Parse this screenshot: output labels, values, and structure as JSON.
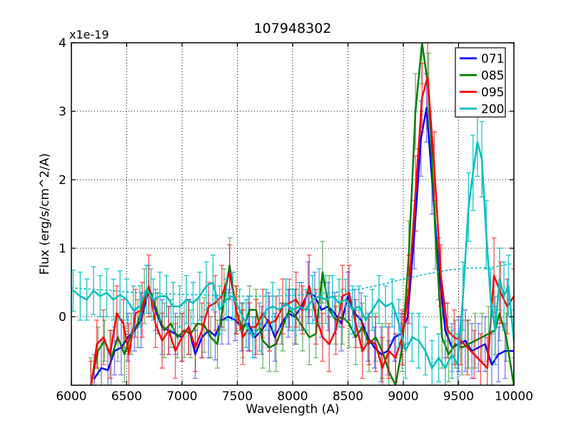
{
  "chart_data": {
    "type": "line",
    "title": "107948302",
    "xlabel": "Wavelength (A)",
    "ylabel": "Flux (erg/s/cm^2/A)",
    "offset_text": "x1e-19",
    "xlim": [
      6000,
      10000
    ],
    "ylim": [
      -1,
      4
    ],
    "xticks": [
      6000,
      6500,
      7000,
      7500,
      8000,
      8500,
      9000,
      9500,
      10000
    ],
    "yticks": [
      0,
      1,
      2,
      3,
      4
    ],
    "grid": true,
    "grid_style": "dotted",
    "legend_position": "upper right",
    "legend_labels": [
      "071",
      "085",
      "095",
      "200"
    ],
    "series": [
      {
        "name": "071",
        "color": "#0000ff",
        "style": "solid",
        "legend": true,
        "err_opacity": 0.5,
        "x": [
          6208,
          6270,
          6330,
          6390,
          6450,
          6510,
          6570,
          6630,
          6700,
          6760,
          6820,
          6880,
          6940,
          7000,
          7060,
          7120,
          7180,
          7240,
          7300,
          7360,
          7420,
          7480,
          7540,
          7600,
          7660,
          7720,
          7780,
          7840,
          7900,
          7960,
          8020,
          8080,
          8140,
          8200,
          8260,
          8320,
          8380,
          8440,
          8500,
          8560,
          8620,
          8680,
          8740,
          8800,
          8860,
          8920,
          8980,
          9040,
          9100,
          9160,
          9210,
          9260,
          9320,
          9380,
          9440,
          9500,
          9560,
          9620,
          9680,
          9740,
          9800,
          9860,
          9920,
          10000
        ],
        "y": [
          -0.9,
          -0.75,
          -0.78,
          -0.5,
          -0.45,
          -0.3,
          -0.2,
          -0.05,
          0.4,
          0.1,
          -0.15,
          -0.2,
          -0.25,
          -0.3,
          -0.15,
          -0.55,
          -0.3,
          -0.2,
          -0.28,
          -0.05,
          0.0,
          -0.05,
          -0.15,
          -0.1,
          -0.3,
          -0.2,
          -0.05,
          -0.3,
          -0.1,
          0.05,
          0.0,
          0.15,
          0.35,
          0.3,
          0.1,
          0.15,
          0.05,
          -0.1,
          0.3,
          0.05,
          -0.05,
          -0.3,
          -0.45,
          -0.55,
          -0.5,
          -0.3,
          -0.25,
          0.0,
          1.2,
          2.6,
          3.05,
          2.0,
          0.7,
          -0.2,
          -0.45,
          -0.4,
          -0.35,
          -0.5,
          -0.45,
          -0.4,
          -0.7,
          -0.55,
          -0.5,
          -0.5
        ],
        "err": [
          0.35,
          0.4,
          0.3,
          0.35,
          0.4,
          0.35,
          0.3,
          0.4,
          0.35,
          0.3,
          0.4,
          0.35,
          0.3,
          0.35,
          0.4,
          0.35,
          0.3,
          0.4,
          0.35,
          0.35,
          0.4,
          0.3,
          0.35,
          0.4,
          0.3,
          0.35,
          0.4,
          0.35,
          0.3,
          0.35,
          0.4,
          0.35,
          0.45,
          0.35,
          0.4,
          0.35,
          0.3,
          0.4,
          0.35,
          0.35,
          0.4,
          0.35,
          0.3,
          0.4,
          0.35,
          0.35,
          0.3,
          0.4,
          0.5,
          0.55,
          0.5,
          0.5,
          0.45,
          0.4,
          0.35,
          0.4,
          0.45,
          0.4,
          0.35,
          0.4,
          0.45,
          0.4,
          0.4,
          0.4
        ]
      },
      {
        "name": "085",
        "color": "#007f00",
        "style": "solid",
        "legend": true,
        "err_opacity": 0.55,
        "x": [
          6176,
          6240,
          6300,
          6360,
          6420,
          6480,
          6540,
          6600,
          6660,
          6720,
          6780,
          6840,
          6900,
          6960,
          7020,
          7080,
          7140,
          7200,
          7260,
          7320,
          7380,
          7430,
          7490,
          7550,
          7610,
          7670,
          7730,
          7790,
          7850,
          7910,
          7970,
          8030,
          8090,
          8150,
          8210,
          8270,
          8330,
          8390,
          8450,
          8510,
          8570,
          8630,
          8690,
          8750,
          8810,
          8870,
          8930,
          8990,
          9050,
          9110,
          9170,
          9230,
          9290,
          9350,
          9410,
          9470,
          9530,
          9590,
          9650,
          9710,
          9770,
          9830,
          9870,
          9930,
          10000
        ],
        "y": [
          -1.0,
          -0.5,
          -0.35,
          -0.6,
          -0.3,
          -0.55,
          -0.25,
          -0.1,
          0.3,
          0.35,
          0.05,
          -0.2,
          -0.1,
          -0.3,
          -0.2,
          -0.25,
          -0.1,
          -0.12,
          -0.3,
          -0.4,
          0.25,
          0.75,
          0.1,
          -0.2,
          0.1,
          0.1,
          -0.35,
          -0.45,
          -0.4,
          -0.15,
          0.1,
          0.0,
          -0.15,
          -0.3,
          -0.25,
          0.65,
          0.1,
          -0.05,
          0.0,
          -0.1,
          -0.3,
          -0.15,
          -0.4,
          -0.3,
          -0.5,
          -0.8,
          -1.0,
          -0.45,
          0.9,
          3.0,
          4.0,
          3.3,
          1.2,
          -0.3,
          -0.55,
          -0.4,
          -0.45,
          -0.4,
          -0.35,
          -0.3,
          -0.25,
          -0.2,
          0.05,
          -0.3,
          -1.0
        ],
        "err": [
          0.4,
          0.35,
          0.3,
          0.4,
          0.35,
          0.4,
          0.3,
          0.35,
          0.4,
          0.35,
          0.3,
          0.4,
          0.35,
          0.3,
          0.4,
          0.35,
          0.35,
          0.4,
          0.3,
          0.35,
          0.45,
          0.4,
          0.35,
          0.4,
          0.35,
          0.3,
          0.4,
          0.35,
          0.4,
          0.35,
          0.3,
          0.4,
          0.35,
          0.4,
          0.35,
          0.45,
          0.5,
          0.35,
          0.4,
          0.35,
          0.4,
          0.35,
          0.4,
          0.35,
          0.4,
          0.45,
          0.4,
          0.35,
          0.5,
          0.55,
          0.6,
          0.55,
          0.5,
          0.45,
          0.4,
          0.35,
          0.4,
          0.35,
          0.4,
          0.35,
          0.4,
          0.35,
          0.4,
          0.35,
          0.4
        ]
      },
      {
        "name": "095",
        "color": "#ff0000",
        "style": "solid",
        "legend": true,
        "err_opacity": 0.65,
        "x": [
          6176,
          6230,
          6290,
          6350,
          6410,
          6470,
          6520,
          6580,
          6640,
          6700,
          6760,
          6820,
          6880,
          6940,
          7000,
          7060,
          7120,
          7180,
          7240,
          7300,
          7360,
          7430,
          7490,
          7550,
          7610,
          7670,
          7730,
          7790,
          7850,
          7910,
          7970,
          8030,
          8090,
          8150,
          8210,
          8270,
          8330,
          8390,
          8450,
          8510,
          8570,
          8630,
          8690,
          8750,
          8810,
          8870,
          8930,
          8990,
          9050,
          9110,
          9170,
          9220,
          9280,
          9340,
          9400,
          9460,
          9520,
          9580,
          9640,
          9700,
          9760,
          9820,
          9880,
          9940,
          10000
        ],
        "y": [
          -1.05,
          -0.4,
          -0.3,
          -0.55,
          0.05,
          -0.1,
          -0.55,
          0.05,
          0.1,
          0.45,
          -0.1,
          -0.35,
          -0.2,
          -0.5,
          -0.3,
          -0.15,
          -0.45,
          -0.2,
          0.15,
          0.2,
          0.3,
          0.65,
          0.1,
          -0.3,
          -0.15,
          -0.15,
          0.05,
          -0.1,
          -0.05,
          0.15,
          0.2,
          0.25,
          0.1,
          0.45,
          0.0,
          -0.3,
          -0.4,
          -0.2,
          0.3,
          0.35,
          -0.1,
          -0.5,
          -0.35,
          -0.4,
          -0.75,
          -0.5,
          -0.6,
          -0.3,
          0.4,
          1.8,
          3.2,
          3.5,
          2.2,
          0.6,
          -0.2,
          -0.3,
          -0.35,
          -0.45,
          -0.55,
          -0.65,
          -0.75,
          0.6,
          0.35,
          0.15,
          0.3
        ],
        "err": [
          0.4,
          0.35,
          0.4,
          0.35,
          0.4,
          0.35,
          0.45,
          0.35,
          0.4,
          0.45,
          0.35,
          0.4,
          0.35,
          0.4,
          0.35,
          0.4,
          0.35,
          0.4,
          0.35,
          0.4,
          0.45,
          0.4,
          0.35,
          0.4,
          0.35,
          0.4,
          0.35,
          0.4,
          0.35,
          0.4,
          0.35,
          0.4,
          0.35,
          0.45,
          0.4,
          0.35,
          0.4,
          0.35,
          0.45,
          0.4,
          0.35,
          0.4,
          0.35,
          0.4,
          0.45,
          0.4,
          0.35,
          0.4,
          0.5,
          0.55,
          0.5,
          0.55,
          0.5,
          0.45,
          0.4,
          0.4,
          0.35,
          0.4,
          0.35,
          0.4,
          0.45,
          0.55,
          0.45,
          0.4,
          0.4
        ]
      },
      {
        "name": "200",
        "color": "#00bfbf",
        "style": "solid",
        "legend": true,
        "err_opacity": 0.85,
        "x": [
          6016,
          6080,
          6140,
          6200,
          6260,
          6320,
          6380,
          6440,
          6500,
          6560,
          6620,
          6680,
          6740,
          6800,
          6860,
          6920,
          6980,
          7040,
          7100,
          7160,
          7220,
          7280,
          7340,
          7400,
          7460,
          7520,
          7580,
          7640,
          7700,
          7760,
          7820,
          7880,
          7940,
          8000,
          8060,
          8120,
          8180,
          8240,
          8300,
          8360,
          8420,
          8480,
          8540,
          8600,
          8660,
          8720,
          8780,
          8840,
          8900,
          8960,
          9020,
          9080,
          9140,
          9200,
          9260,
          9320,
          9380,
          9440,
          9490,
          9540,
          9590,
          9630,
          9670,
          9710,
          9750,
          9790,
          9830,
          9870,
          9910,
          9950,
          10000
        ],
        "y": [
          0.38,
          0.3,
          0.25,
          0.38,
          0.3,
          0.35,
          0.25,
          0.32,
          0.25,
          0.1,
          0.15,
          0.4,
          0.25,
          0.3,
          0.3,
          0.15,
          0.15,
          0.25,
          0.2,
          0.3,
          0.45,
          0.5,
          0.1,
          0.25,
          0.3,
          0.1,
          -0.1,
          -0.3,
          -0.15,
          0.1,
          0.15,
          0.1,
          0.2,
          0.1,
          0.15,
          0.1,
          0.25,
          0.3,
          0.25,
          0.3,
          0.2,
          0.25,
          0.1,
          0.15,
          -0.05,
          0.1,
          0.25,
          0.15,
          0.2,
          -0.1,
          -0.5,
          -0.3,
          -0.35,
          -0.5,
          -0.75,
          -0.6,
          -0.75,
          -0.55,
          -0.7,
          0.3,
          1.6,
          2.1,
          2.55,
          2.3,
          1.2,
          0.25,
          -0.2,
          0.55,
          0.3,
          0.45,
          -0.35
        ],
        "err": [
          0.3,
          0.35,
          0.3,
          0.35,
          0.3,
          0.35,
          0.3,
          0.35,
          0.3,
          0.35,
          0.3,
          0.35,
          0.3,
          0.35,
          0.3,
          0.35,
          0.3,
          0.35,
          0.3,
          0.35,
          0.35,
          0.4,
          0.35,
          0.3,
          0.35,
          0.3,
          0.35,
          0.3,
          0.35,
          0.3,
          0.35,
          0.3,
          0.35,
          0.3,
          0.35,
          0.3,
          0.35,
          0.4,
          0.35,
          0.3,
          0.35,
          0.3,
          0.35,
          0.3,
          0.35,
          0.3,
          0.35,
          0.3,
          0.35,
          0.35,
          0.4,
          0.35,
          0.4,
          0.35,
          0.4,
          0.35,
          0.4,
          0.35,
          0.45,
          0.5,
          0.5,
          0.55,
          0.5,
          0.55,
          0.5,
          0.45,
          0.5,
          0.45,
          0.5,
          0.45,
          0.45
        ]
      },
      {
        "name": "200-continuum",
        "color": "#00bfbf",
        "style": "dotted",
        "legend": false,
        "err_opacity": 0,
        "x": [
          6000,
          6300,
          6600,
          6900,
          7200,
          7500,
          7800,
          8100,
          8400,
          8600,
          8800,
          9000,
          9200,
          9400,
          9600,
          9800,
          10000
        ],
        "y": [
          0.42,
          0.39,
          0.35,
          0.33,
          0.32,
          0.3,
          0.3,
          0.32,
          0.36,
          0.4,
          0.47,
          0.55,
          0.62,
          0.68,
          0.71,
          0.72,
          0.78
        ],
        "err": []
      }
    ]
  }
}
